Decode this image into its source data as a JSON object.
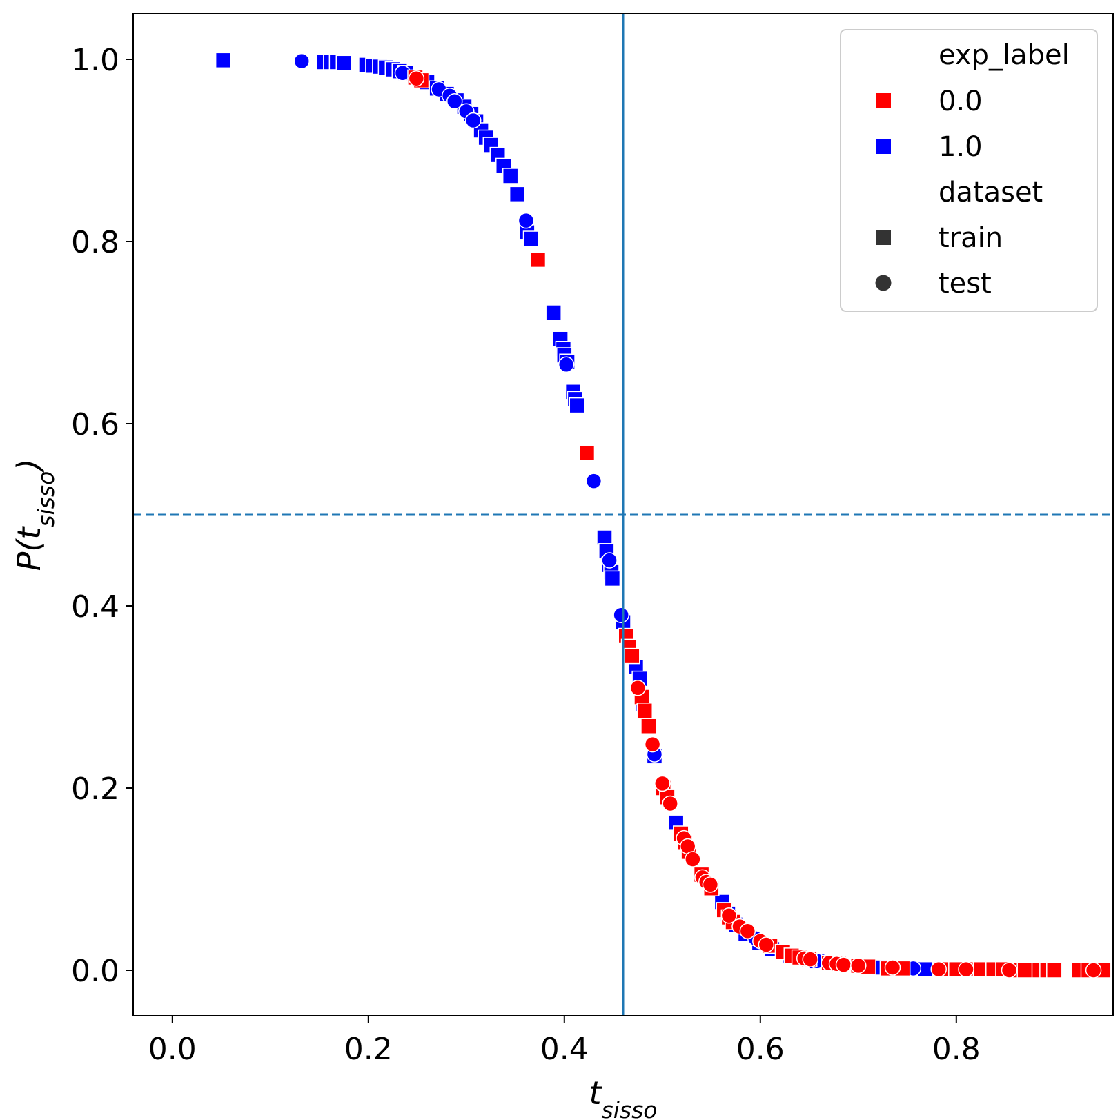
{
  "chart_data": {
    "type": "scatter",
    "title": "",
    "xlabel": {
      "main": "t",
      "sub": "sisso"
    },
    "ylabel": {
      "main": "P(t",
      "sub": "sisso",
      "close": ")"
    },
    "xlim": [
      -0.04,
      0.96
    ],
    "ylim": [
      -0.05,
      1.05
    ],
    "xticks": [
      0.0,
      0.2,
      0.4,
      0.6,
      0.8
    ],
    "yticks": [
      0.0,
      0.2,
      0.4,
      0.6,
      0.8,
      1.0
    ],
    "xtick_labels": [
      "0.0",
      "0.2",
      "0.4",
      "0.6",
      "0.8"
    ],
    "ytick_labels": [
      "0.0",
      "0.2",
      "0.4",
      "0.6",
      "0.8",
      "1.0"
    ],
    "vline": {
      "x": 0.46,
      "color": "#1f77b4",
      "style": "solid"
    },
    "hline": {
      "y": 0.5,
      "color": "#1f77b4",
      "style": "dashed"
    },
    "grid": false,
    "legend_position": "top-right",
    "legend": {
      "hue_title": "exp_label",
      "hue_entries": [
        {
          "label": "0.0",
          "color": "#ff0000"
        },
        {
          "label": "1.0",
          "color": "#0000ff"
        }
      ],
      "style_title": "dataset",
      "style_entries": [
        {
          "label": "train",
          "marker": "square",
          "color": "#333333"
        },
        {
          "label": "test",
          "marker": "circle",
          "color": "#333333"
        }
      ]
    },
    "series": [
      {
        "exp_label": "1.0",
        "dataset": "train",
        "marker": "square",
        "color": "#0000ff",
        "points": [
          [
            0.052,
            0.999
          ],
          [
            0.155,
            0.997
          ],
          [
            0.162,
            0.997
          ],
          [
            0.168,
            0.997
          ],
          [
            0.175,
            0.996
          ],
          [
            0.198,
            0.994
          ],
          [
            0.205,
            0.993
          ],
          [
            0.212,
            0.992
          ],
          [
            0.218,
            0.991
          ],
          [
            0.225,
            0.989
          ],
          [
            0.232,
            0.987
          ],
          [
            0.238,
            0.985
          ],
          [
            0.26,
            0.975
          ],
          [
            0.27,
            0.968
          ],
          [
            0.28,
            0.962
          ],
          [
            0.29,
            0.955
          ],
          [
            0.298,
            0.948
          ],
          [
            0.305,
            0.94
          ],
          [
            0.31,
            0.932
          ],
          [
            0.315,
            0.922
          ],
          [
            0.32,
            0.914
          ],
          [
            0.325,
            0.906
          ],
          [
            0.332,
            0.895
          ],
          [
            0.338,
            0.883
          ],
          [
            0.345,
            0.872
          ],
          [
            0.352,
            0.852
          ],
          [
            0.362,
            0.81
          ],
          [
            0.366,
            0.803
          ],
          [
            0.389,
            0.722
          ],
          [
            0.396,
            0.693
          ],
          [
            0.399,
            0.682
          ],
          [
            0.4,
            0.675
          ],
          [
            0.403,
            0.668
          ],
          [
            0.409,
            0.635
          ],
          [
            0.411,
            0.627
          ],
          [
            0.413,
            0.62
          ],
          [
            0.441,
            0.475
          ],
          [
            0.443,
            0.46
          ],
          [
            0.446,
            0.445
          ],
          [
            0.448,
            0.437
          ],
          [
            0.449,
            0.43
          ],
          [
            0.46,
            0.382
          ],
          [
            0.473,
            0.333
          ],
          [
            0.477,
            0.32
          ],
          [
            0.492,
            0.235
          ],
          [
            0.514,
            0.162
          ],
          [
            0.561,
            0.075
          ],
          [
            0.567,
            0.062
          ],
          [
            0.575,
            0.05
          ],
          [
            0.585,
            0.04
          ],
          [
            0.599,
            0.03
          ],
          [
            0.612,
            0.023
          ],
          [
            0.63,
            0.016
          ],
          [
            0.658,
            0.01
          ],
          [
            0.722,
            0.003
          ],
          [
            0.756,
            0.002
          ],
          [
            0.768,
            0.001
          ]
        ]
      },
      {
        "exp_label": "1.0",
        "dataset": "test",
        "marker": "circle",
        "color": "#0000ff",
        "points": [
          [
            0.132,
            0.998
          ],
          [
            0.235,
            0.985
          ],
          [
            0.272,
            0.967
          ],
          [
            0.283,
            0.96
          ],
          [
            0.288,
            0.954
          ],
          [
            0.3,
            0.943
          ],
          [
            0.307,
            0.933
          ],
          [
            0.361,
            0.823
          ],
          [
            0.402,
            0.665
          ],
          [
            0.43,
            0.537
          ],
          [
            0.446,
            0.45
          ],
          [
            0.458,
            0.39
          ],
          [
            0.48,
            0.288
          ],
          [
            0.492,
            0.237
          ],
          [
            0.595,
            0.035
          ],
          [
            0.658,
            0.01
          ],
          [
            0.756,
            0.002
          ]
        ]
      },
      {
        "exp_label": "0.0",
        "dataset": "train",
        "marker": "square",
        "color": "#ff0000",
        "points": [
          [
            0.248,
            0.98
          ],
          [
            0.254,
            0.977
          ],
          [
            0.373,
            0.78
          ],
          [
            0.423,
            0.568
          ],
          [
            0.463,
            0.367
          ],
          [
            0.466,
            0.355
          ],
          [
            0.469,
            0.345
          ],
          [
            0.479,
            0.3
          ],
          [
            0.482,
            0.285
          ],
          [
            0.486,
            0.268
          ],
          [
            0.501,
            0.2
          ],
          [
            0.505,
            0.19
          ],
          [
            0.519,
            0.15
          ],
          [
            0.523,
            0.14
          ],
          [
            0.527,
            0.13
          ],
          [
            0.54,
            0.105
          ],
          [
            0.55,
            0.09
          ],
          [
            0.563,
            0.066
          ],
          [
            0.568,
            0.058
          ],
          [
            0.572,
            0.053
          ],
          [
            0.61,
            0.027
          ],
          [
            0.623,
            0.02
          ],
          [
            0.632,
            0.016
          ],
          [
            0.64,
            0.014
          ],
          [
            0.65,
            0.012
          ],
          [
            0.67,
            0.008
          ],
          [
            0.68,
            0.007
          ],
          [
            0.7,
            0.005
          ],
          [
            0.71,
            0.004
          ],
          [
            0.73,
            0.002
          ],
          [
            0.745,
            0.002
          ],
          [
            0.785,
            0.001
          ],
          [
            0.8,
            0.001
          ],
          [
            0.815,
            0.001
          ],
          [
            0.825,
            0.001
          ],
          [
            0.838,
            0.001
          ],
          [
            0.848,
            0.001
          ],
          [
            0.862,
            0.0
          ],
          [
            0.87,
            0.0
          ],
          [
            0.885,
            0.0
          ],
          [
            0.893,
            0.0
          ],
          [
            0.9,
            0.0
          ],
          [
            0.925,
            0.0
          ],
          [
            0.935,
            0.0
          ],
          [
            0.95,
            0.0
          ]
        ]
      },
      {
        "exp_label": "0.0",
        "dataset": "test",
        "marker": "circle",
        "color": "#ff0000",
        "points": [
          [
            0.249,
            0.979
          ],
          [
            0.475,
            0.31
          ],
          [
            0.49,
            0.248
          ],
          [
            0.5,
            0.205
          ],
          [
            0.508,
            0.183
          ],
          [
            0.522,
            0.145
          ],
          [
            0.526,
            0.136
          ],
          [
            0.531,
            0.122
          ],
          [
            0.541,
            0.102
          ],
          [
            0.545,
            0.097
          ],
          [
            0.549,
            0.094
          ],
          [
            0.568,
            0.06
          ],
          [
            0.579,
            0.048
          ],
          [
            0.587,
            0.043
          ],
          [
            0.6,
            0.032
          ],
          [
            0.606,
            0.028
          ],
          [
            0.645,
            0.013
          ],
          [
            0.651,
            0.012
          ],
          [
            0.67,
            0.008
          ],
          [
            0.678,
            0.007
          ],
          [
            0.685,
            0.006
          ],
          [
            0.7,
            0.005
          ],
          [
            0.735,
            0.003
          ],
          [
            0.782,
            0.001
          ],
          [
            0.81,
            0.001
          ],
          [
            0.854,
            0.0
          ],
          [
            0.94,
            0.0
          ]
        ]
      }
    ]
  }
}
